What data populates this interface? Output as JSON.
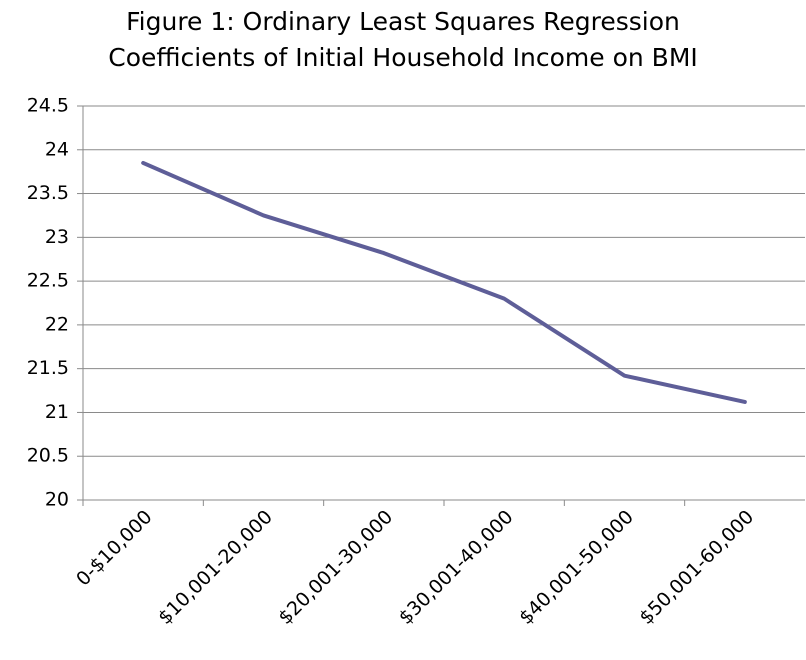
{
  "chart_data": {
    "type": "line",
    "title": "Figure 1: Ordinary Least Squares Regression Coefficients of Initial Household Income on BMI",
    "categories": [
      "0-$10,000",
      "$10,001-20,000",
      "$20,001-30,000",
      "$30,001-40,000",
      "$40,001-50,000",
      "$50,001-60,000"
    ],
    "series": [
      {
        "name": "BMI",
        "color": "#5e5e98",
        "values": [
          23.85,
          23.25,
          22.82,
          22.3,
          21.42,
          21.12
        ]
      }
    ],
    "ylim": [
      20,
      24.5
    ],
    "yticks": [
      20,
      20.5,
      21,
      21.5,
      22,
      22.5,
      23,
      23.5,
      24,
      24.5
    ],
    "grid": true
  }
}
